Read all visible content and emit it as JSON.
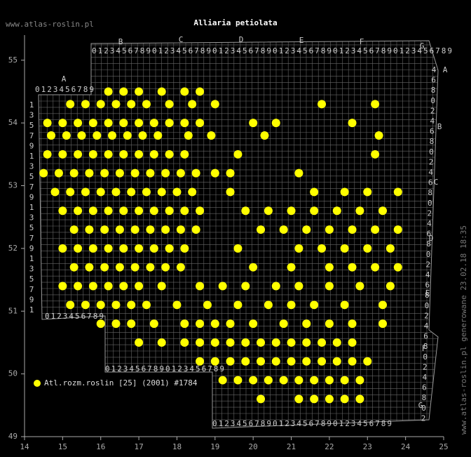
{
  "site": "www.atlas-roslin.pl",
  "title": "Alliaria petiolata",
  "footer_note": "www.atlas-roslin.pl generowane 23.02.18 18:35",
  "legend": {
    "label": "Atl.rozm.roslin [25] (2001) #1784",
    "color": "#ffff00"
  },
  "x_axis": {
    "lim": [
      14,
      25
    ],
    "ticks": [
      14,
      15,
      16,
      17,
      18,
      19,
      20,
      21,
      22,
      23,
      24,
      25
    ]
  },
  "y_axis": {
    "lim": [
      49,
      55.4
    ],
    "ticks": [
      49,
      50,
      51,
      52,
      53,
      54,
      55
    ]
  },
  "grid_labels": {
    "top_letters": [
      "A",
      "B",
      "C",
      "D",
      "E",
      "F",
      "G"
    ],
    "right_letters": [
      "A",
      "B",
      "C",
      "D",
      "E",
      "F",
      "G"
    ],
    "digits": "0123456789",
    "left_digits": [
      "1",
      "3",
      "5",
      "7",
      "9"
    ],
    "right_digits": [
      "4",
      "6",
      "8",
      "0",
      "2"
    ]
  },
  "points": [
    [
      16.2,
      54.5
    ],
    [
      16.6,
      54.5
    ],
    [
      17.0,
      54.5
    ],
    [
      17.6,
      54.5
    ],
    [
      18.2,
      54.5
    ],
    [
      18.6,
      54.5
    ],
    [
      15.2,
      54.3
    ],
    [
      15.6,
      54.3
    ],
    [
      16.0,
      54.3
    ],
    [
      16.4,
      54.3
    ],
    [
      16.8,
      54.3
    ],
    [
      17.2,
      54.3
    ],
    [
      17.8,
      54.3
    ],
    [
      18.4,
      54.3
    ],
    [
      19.0,
      54.3
    ],
    [
      21.8,
      54.3
    ],
    [
      23.2,
      54.3
    ],
    [
      14.6,
      54.0
    ],
    [
      15.0,
      54.0
    ],
    [
      15.4,
      54.0
    ],
    [
      15.8,
      54.0
    ],
    [
      16.2,
      54.0
    ],
    [
      16.6,
      54.0
    ],
    [
      17.0,
      54.0
    ],
    [
      17.4,
      54.0
    ],
    [
      17.8,
      54.0
    ],
    [
      18.2,
      54.0
    ],
    [
      18.6,
      54.0
    ],
    [
      20.0,
      54.0
    ],
    [
      20.6,
      54.0
    ],
    [
      22.6,
      54.0
    ],
    [
      14.7,
      53.8
    ],
    [
      15.1,
      53.8
    ],
    [
      15.5,
      53.8
    ],
    [
      15.9,
      53.8
    ],
    [
      16.3,
      53.8
    ],
    [
      16.7,
      53.8
    ],
    [
      17.1,
      53.8
    ],
    [
      17.5,
      53.8
    ],
    [
      18.3,
      53.8
    ],
    [
      18.9,
      53.8
    ],
    [
      20.3,
      53.8
    ],
    [
      23.3,
      53.8
    ],
    [
      14.6,
      53.5
    ],
    [
      15.0,
      53.5
    ],
    [
      15.4,
      53.5
    ],
    [
      15.8,
      53.5
    ],
    [
      16.2,
      53.5
    ],
    [
      16.6,
      53.5
    ],
    [
      17.0,
      53.5
    ],
    [
      17.4,
      53.5
    ],
    [
      17.8,
      53.5
    ],
    [
      18.2,
      53.5
    ],
    [
      19.6,
      53.5
    ],
    [
      23.2,
      53.5
    ],
    [
      14.5,
      53.2
    ],
    [
      14.9,
      53.2
    ],
    [
      15.3,
      53.2
    ],
    [
      15.7,
      53.2
    ],
    [
      16.1,
      53.2
    ],
    [
      16.5,
      53.2
    ],
    [
      16.9,
      53.2
    ],
    [
      17.3,
      53.2
    ],
    [
      17.7,
      53.2
    ],
    [
      18.1,
      53.2
    ],
    [
      18.5,
      53.2
    ],
    [
      19.0,
      53.2
    ],
    [
      19.4,
      53.2
    ],
    [
      21.2,
      53.2
    ],
    [
      14.8,
      52.9
    ],
    [
      15.2,
      52.9
    ],
    [
      15.6,
      52.9
    ],
    [
      16.0,
      52.9
    ],
    [
      16.4,
      52.9
    ],
    [
      16.8,
      52.9
    ],
    [
      17.2,
      52.9
    ],
    [
      17.6,
      52.9
    ],
    [
      18.0,
      52.9
    ],
    [
      18.4,
      52.9
    ],
    [
      19.4,
      52.9
    ],
    [
      21.6,
      52.9
    ],
    [
      22.4,
      52.9
    ],
    [
      23.0,
      52.9
    ],
    [
      23.8,
      52.9
    ],
    [
      15.0,
      52.6
    ],
    [
      15.4,
      52.6
    ],
    [
      15.8,
      52.6
    ],
    [
      16.2,
      52.6
    ],
    [
      16.6,
      52.6
    ],
    [
      17.0,
      52.6
    ],
    [
      17.4,
      52.6
    ],
    [
      17.8,
      52.6
    ],
    [
      18.2,
      52.6
    ],
    [
      18.6,
      52.6
    ],
    [
      19.8,
      52.6
    ],
    [
      20.4,
      52.6
    ],
    [
      21.0,
      52.6
    ],
    [
      21.6,
      52.6
    ],
    [
      22.2,
      52.6
    ],
    [
      22.8,
      52.6
    ],
    [
      23.4,
      52.6
    ],
    [
      15.3,
      52.3
    ],
    [
      15.7,
      52.3
    ],
    [
      16.1,
      52.3
    ],
    [
      16.5,
      52.3
    ],
    [
      16.9,
      52.3
    ],
    [
      17.3,
      52.3
    ],
    [
      17.7,
      52.3
    ],
    [
      18.1,
      52.3
    ],
    [
      18.5,
      52.3
    ],
    [
      20.2,
      52.3
    ],
    [
      20.8,
      52.3
    ],
    [
      21.4,
      52.3
    ],
    [
      22.0,
      52.3
    ],
    [
      22.6,
      52.3
    ],
    [
      23.2,
      52.3
    ],
    [
      23.8,
      52.3
    ],
    [
      15.0,
      52.0
    ],
    [
      15.4,
      52.0
    ],
    [
      15.8,
      52.0
    ],
    [
      16.2,
      52.0
    ],
    [
      16.6,
      52.0
    ],
    [
      17.0,
      52.0
    ],
    [
      17.4,
      52.0
    ],
    [
      17.8,
      52.0
    ],
    [
      18.2,
      52.0
    ],
    [
      19.6,
      52.0
    ],
    [
      21.2,
      52.0
    ],
    [
      21.8,
      52.0
    ],
    [
      22.4,
      52.0
    ],
    [
      23.0,
      52.0
    ],
    [
      23.6,
      52.0
    ],
    [
      15.3,
      51.7
    ],
    [
      15.7,
      51.7
    ],
    [
      16.1,
      51.7
    ],
    [
      16.5,
      51.7
    ],
    [
      16.9,
      51.7
    ],
    [
      17.3,
      51.7
    ],
    [
      17.7,
      51.7
    ],
    [
      18.1,
      51.7
    ],
    [
      20.0,
      51.7
    ],
    [
      21.0,
      51.7
    ],
    [
      22.0,
      51.7
    ],
    [
      22.6,
      51.7
    ],
    [
      23.2,
      51.7
    ],
    [
      23.8,
      51.7
    ],
    [
      15.0,
      51.4
    ],
    [
      15.4,
      51.4
    ],
    [
      15.8,
      51.4
    ],
    [
      16.2,
      51.4
    ],
    [
      16.6,
      51.4
    ],
    [
      17.0,
      51.4
    ],
    [
      17.6,
      51.4
    ],
    [
      18.6,
      51.4
    ],
    [
      19.2,
      51.4
    ],
    [
      19.8,
      51.4
    ],
    [
      20.6,
      51.4
    ],
    [
      21.2,
      51.4
    ],
    [
      22.0,
      51.4
    ],
    [
      22.8,
      51.4
    ],
    [
      23.6,
      51.4
    ],
    [
      15.2,
      51.1
    ],
    [
      15.6,
      51.1
    ],
    [
      16.0,
      51.1
    ],
    [
      16.4,
      51.1
    ],
    [
      16.8,
      51.1
    ],
    [
      17.2,
      51.1
    ],
    [
      18.0,
      51.1
    ],
    [
      18.8,
      51.1
    ],
    [
      19.6,
      51.1
    ],
    [
      20.4,
      51.1
    ],
    [
      21.0,
      51.1
    ],
    [
      21.6,
      51.1
    ],
    [
      22.4,
      51.1
    ],
    [
      23.4,
      51.1
    ],
    [
      16.0,
      50.8
    ],
    [
      16.4,
      50.8
    ],
    [
      16.8,
      50.8
    ],
    [
      17.4,
      50.8
    ],
    [
      18.2,
      50.8
    ],
    [
      18.6,
      50.8
    ],
    [
      19.0,
      50.8
    ],
    [
      19.4,
      50.8
    ],
    [
      20.0,
      50.8
    ],
    [
      20.8,
      50.8
    ],
    [
      21.4,
      50.8
    ],
    [
      22.0,
      50.8
    ],
    [
      22.6,
      50.8
    ],
    [
      23.4,
      50.8
    ],
    [
      17.0,
      50.5
    ],
    [
      17.6,
      50.5
    ],
    [
      18.2,
      50.5
    ],
    [
      18.6,
      50.5
    ],
    [
      19.0,
      50.5
    ],
    [
      19.4,
      50.5
    ],
    [
      19.8,
      50.5
    ],
    [
      20.2,
      50.5
    ],
    [
      20.6,
      50.5
    ],
    [
      21.0,
      50.5
    ],
    [
      21.4,
      50.5
    ],
    [
      21.8,
      50.5
    ],
    [
      22.2,
      50.5
    ],
    [
      22.6,
      50.5
    ],
    [
      18.6,
      50.2
    ],
    [
      19.0,
      50.2
    ],
    [
      19.4,
      50.2
    ],
    [
      19.8,
      50.2
    ],
    [
      20.2,
      50.2
    ],
    [
      20.6,
      50.2
    ],
    [
      21.0,
      50.2
    ],
    [
      21.4,
      50.2
    ],
    [
      21.8,
      50.2
    ],
    [
      22.2,
      50.2
    ],
    [
      22.6,
      50.2
    ],
    [
      23.0,
      50.2
    ],
    [
      19.2,
      49.9
    ],
    [
      19.6,
      49.9
    ],
    [
      20.0,
      49.9
    ],
    [
      20.4,
      49.9
    ],
    [
      20.8,
      49.9
    ],
    [
      21.2,
      49.9
    ],
    [
      21.6,
      49.9
    ],
    [
      22.0,
      49.9
    ],
    [
      22.4,
      49.9
    ],
    [
      22.8,
      49.9
    ],
    [
      20.2,
      49.6
    ],
    [
      21.2,
      49.6
    ],
    [
      21.6,
      49.6
    ],
    [
      22.0,
      49.6
    ],
    [
      22.4,
      49.6
    ],
    [
      22.8,
      49.6
    ]
  ]
}
